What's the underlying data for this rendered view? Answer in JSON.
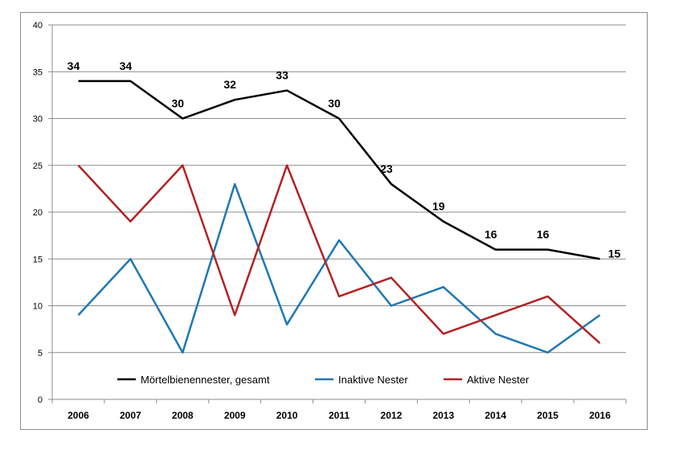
{
  "chart_data": {
    "type": "line",
    "title": "",
    "xlabel": "",
    "ylabel": "",
    "categories": [
      "2006",
      "2007",
      "2008",
      "2009",
      "2010",
      "2011",
      "2012",
      "2013",
      "2014",
      "2015",
      "2016"
    ],
    "ylim": [
      0,
      40
    ],
    "yticks": [
      0,
      5,
      10,
      15,
      20,
      25,
      30,
      35,
      40
    ],
    "grid": true,
    "legend_position": "bottom",
    "series": [
      {
        "name": "Mörtelbienennester, gesamt",
        "color": "#000000",
        "values": [
          34,
          34,
          30,
          32,
          33,
          30,
          23,
          19,
          16,
          16,
          15
        ],
        "data_labels": [
          "34",
          "34",
          "30",
          "32",
          "33",
          "30",
          "23",
          "19",
          "16",
          "16",
          "15"
        ]
      },
      {
        "name": "Inaktive Nester",
        "color": "#1f77b4",
        "values": [
          9,
          15,
          5,
          23,
          8,
          17,
          10,
          12,
          7,
          5,
          9
        ]
      },
      {
        "name": "Aktive Nester",
        "color": "#b22222",
        "values": [
          25,
          19,
          25,
          9,
          25,
          11,
          13,
          7,
          9,
          11,
          6
        ]
      }
    ]
  }
}
